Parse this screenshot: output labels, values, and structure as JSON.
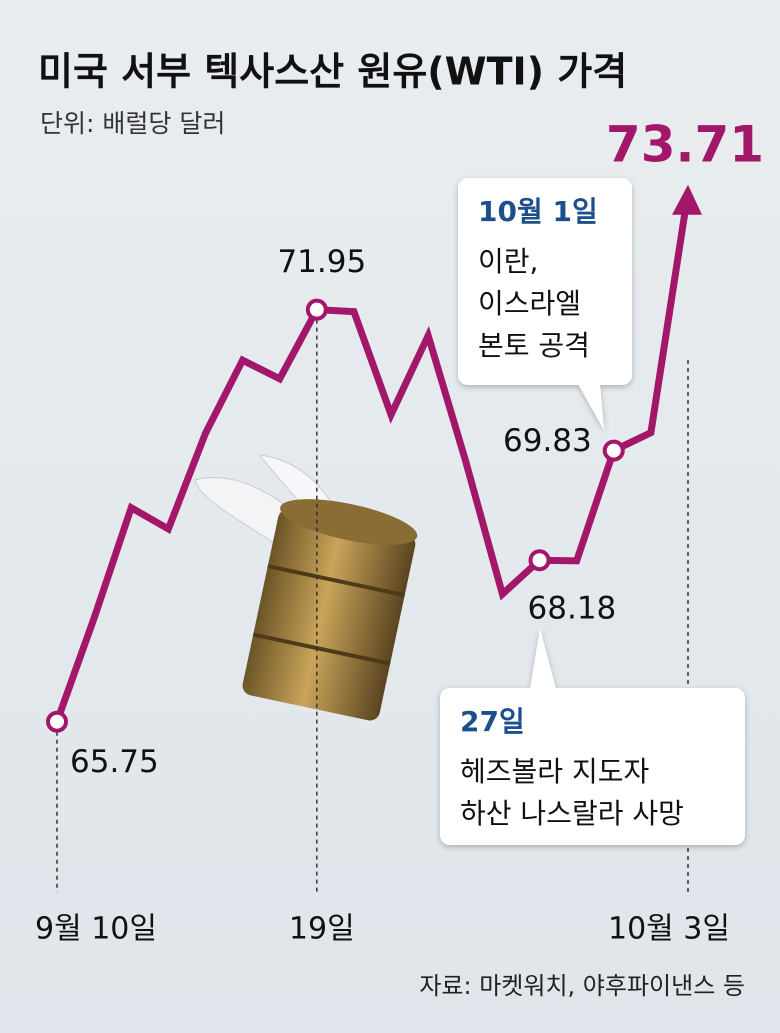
{
  "chart_data": {
    "type": "line",
    "title": "미국 서부 텍사스산 원유(WTI) 가격",
    "subtitle": "단위: 배럴당 달러",
    "source": "자료: 마켓워치, 야후파이낸스 등",
    "categories": [
      "9월 10일",
      null,
      null,
      null,
      null,
      null,
      null,
      "19일",
      null,
      null,
      null,
      null,
      null,
      null,
      null,
      null,
      null,
      "10월 3일"
    ],
    "values": [
      65.75,
      67.31,
      68.97,
      68.65,
      70.09,
      71.19,
      70.91,
      71.95,
      71.92,
      70.37,
      71.56,
      69.69,
      67.67,
      68.18,
      68.17,
      69.83,
      70.1,
      73.71
    ],
    "color": "#a3176b",
    "ylim": [
      64,
      75
    ],
    "annotations": [
      {
        "title": "10월 1일",
        "lines": [
          "이란,",
          "이스라엘",
          "본토 공격"
        ]
      },
      {
        "title": "27일",
        "lines": [
          "헤즈볼라 지도자",
          "하산 나스랄라 사망"
        ]
      }
    ]
  }
}
